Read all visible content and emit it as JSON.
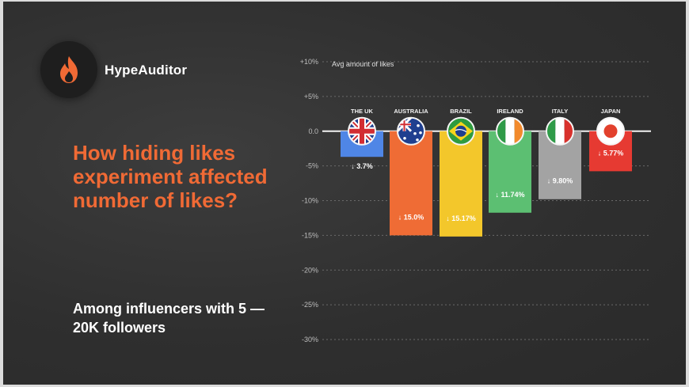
{
  "brand": {
    "name": "HypeAuditor",
    "logo_icon": "flame-icon",
    "accent_color": "#f06a35"
  },
  "headline": "How hiding likes experiment affected number of likes?",
  "subheadline": "Among influencers with 5 — 20K followers",
  "chart_data": {
    "type": "bar",
    "title": "Avg amount of likes",
    "categories": [
      "THE UK",
      "AUSTRALIA",
      "BRAZIL",
      "IRELAND",
      "ITALY",
      "JAPAN"
    ],
    "values": [
      -3.7,
      -15.0,
      -15.17,
      -11.74,
      -9.8,
      -5.77
    ],
    "value_labels": [
      "↓ 3.7%",
      "↓ 15.0%",
      "↓ 15.17%",
      "↓ 11.74%",
      "↓ 9.80%",
      "↓ 5.77%"
    ],
    "bar_colors": [
      "#4f86e6",
      "#ef6c35",
      "#f3c72b",
      "#5cbf72",
      "#a3a3a3",
      "#e63a32"
    ],
    "flag_icons": [
      "uk-flag-icon",
      "australia-flag-icon",
      "brazil-flag-icon",
      "ireland-flag-icon",
      "italy-flag-icon",
      "japan-flag-icon"
    ],
    "yticks": [
      "+10%",
      "+5%",
      "0.0",
      "-5%",
      "-10%",
      "-15%",
      "-20%",
      "-25%",
      "-30%"
    ],
    "ylim": [
      -30,
      10
    ],
    "grid": true
  }
}
